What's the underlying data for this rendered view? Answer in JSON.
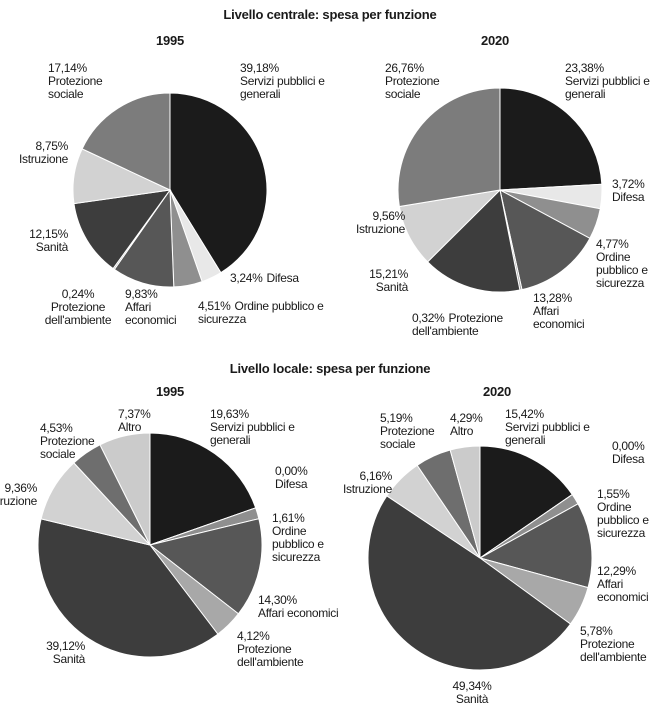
{
  "chart_data": [
    {
      "type": "pie",
      "suptitle": "Livello centrale: spesa per funzione",
      "title": "1995",
      "categories": [
        "Servizi pubblici e generali",
        "Difesa",
        "Ordine pubblico e sicurezza",
        "Affari economici",
        "Protezione dell'ambiente",
        "Sanità",
        "Istruzione",
        "Protezione sociale"
      ],
      "values": [
        39.18,
        3.24,
        4.51,
        9.83,
        0.24,
        12.15,
        8.75,
        17.14
      ],
      "value_labels": [
        "39,18%",
        "3,24%",
        "4,51%",
        "9,83%",
        "0,24%",
        "12,15%",
        "8,75%",
        "17,14%"
      ],
      "colors": [
        "#1b1b1b",
        "#e8e8e8",
        "#8f8f8f",
        "#575757",
        "#a8a8a8",
        "#3d3d3d",
        "#d2d2d2",
        "#7c7c7c"
      ]
    },
    {
      "type": "pie",
      "title": "2020",
      "categories": [
        "Servizi pubblici e generali",
        "Difesa",
        "Ordine pubblico e sicurezza",
        "Affari economici",
        "Protezione dell'ambiente",
        "Sanità",
        "Istruzione",
        "Protezione sociale"
      ],
      "values": [
        23.38,
        3.72,
        4.77,
        13.28,
        0.32,
        15.21,
        9.56,
        26.76
      ],
      "value_labels": [
        "23,38%",
        "3,72%",
        "4,77%",
        "13,28%",
        "0,32%",
        "15,21%",
        "9,56%",
        "26,76%"
      ],
      "colors": [
        "#1b1b1b",
        "#e8e8e8",
        "#8f8f8f",
        "#575757",
        "#a8a8a8",
        "#3d3d3d",
        "#d2d2d2",
        "#7c7c7c"
      ]
    },
    {
      "type": "pie",
      "suptitle": "Livello locale: spesa per funzione",
      "title": "1995",
      "categories": [
        "Servizi pubblici e generali",
        "Difesa",
        "Ordine pubblico e sicurezza",
        "Affari economici",
        "Protezione dell'ambiente",
        "Sanità",
        "Istruzione",
        "Protezione sociale",
        "Altro"
      ],
      "values": [
        19.63,
        0.0,
        1.61,
        14.3,
        4.12,
        39.12,
        9.36,
        4.53,
        7.37
      ],
      "value_labels": [
        "19,63%",
        "0,00%",
        "1,61%",
        "14,30%",
        "4,12%",
        "39,12%",
        "9,36%",
        "4,53%",
        "7,37%"
      ],
      "colors": [
        "#1b1b1b",
        "#e8e8e8",
        "#8f8f8f",
        "#575757",
        "#a8a8a8",
        "#3d3d3d",
        "#d2d2d2",
        "#6e6e6e",
        "#cbcbcb"
      ]
    },
    {
      "type": "pie",
      "title": "2020",
      "categories": [
        "Servizi pubblici e generali",
        "Difesa",
        "Ordine pubblico e sicurezza",
        "Affari economici",
        "Protezione dell'ambiente",
        "Sanità",
        "Istruzione",
        "Protezione sociale",
        "Altro"
      ],
      "values": [
        15.42,
        0.0,
        1.55,
        12.29,
        5.78,
        49.34,
        6.16,
        5.19,
        4.29
      ],
      "value_labels": [
        "15,42%",
        "0,00%",
        "1,55%",
        "12,29%",
        "5,78%",
        "49,34%",
        "6,16%",
        "5,19%",
        "4,29%"
      ],
      "colors": [
        "#1b1b1b",
        "#e8e8e8",
        "#8f8f8f",
        "#575757",
        "#a8a8a8",
        "#3d3d3d",
        "#d2d2d2",
        "#6e6e6e",
        "#cbcbcb"
      ]
    }
  ]
}
